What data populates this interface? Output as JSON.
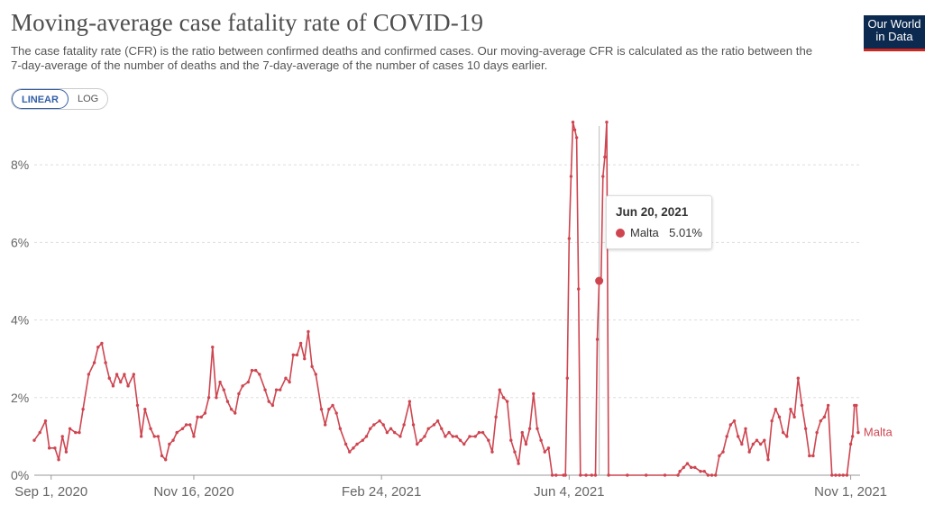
{
  "header": {
    "title": "Moving-average case fatality rate of COVID-19",
    "subtitle": "The case fatality rate (CFR) is the ratio between confirmed deaths and confirmed cases. Our moving-average CFR is calculated as the ratio between the 7-day-average of the number of deaths and the 7-day-average of the number of cases 10 days earlier."
  },
  "logo": {
    "line1": "Our World",
    "line2": "in Data"
  },
  "scale_toggle": {
    "linear": "LINEAR",
    "log": "LOG",
    "selected": "LINEAR"
  },
  "tooltip": {
    "date": "Jun 20, 2021",
    "series": "Malta",
    "value": "5.01%"
  },
  "colors": {
    "series": "#ce4550",
    "grid": "#dddddd",
    "axis": "#999999"
  },
  "chart_data": {
    "type": "line",
    "x_ticks": [
      "Sep 1, 2020",
      "Nov 16, 2020",
      "Feb 24, 2021",
      "Jun 4, 2021",
      "Nov 1, 2021"
    ],
    "y_ticks": [
      "0%",
      "2%",
      "4%",
      "6%",
      "8%"
    ],
    "ylim": [
      0,
      9
    ],
    "xlim": [
      "2020-08-23",
      "2021-11-06"
    ],
    "grid": true,
    "series": [
      {
        "name": "Malta",
        "color": "#ce4550",
        "points": [
          [
            "2020-08-23",
            0.9
          ],
          [
            "2020-08-26",
            1.1
          ],
          [
            "2020-08-29",
            1.4
          ],
          [
            "2020-08-31",
            0.7
          ],
          [
            "2020-09-03",
            0.7
          ],
          [
            "2020-09-05",
            0.4
          ],
          [
            "2020-09-07",
            1.0
          ],
          [
            "2020-09-09",
            0.6
          ],
          [
            "2020-09-11",
            1.2
          ],
          [
            "2020-09-14",
            1.1
          ],
          [
            "2020-09-16",
            1.1
          ],
          [
            "2020-09-18",
            1.7
          ],
          [
            "2020-09-21",
            2.6
          ],
          [
            "2020-09-24",
            2.9
          ],
          [
            "2020-09-26",
            3.3
          ],
          [
            "2020-09-28",
            3.4
          ],
          [
            "2020-09-30",
            2.9
          ],
          [
            "2020-10-02",
            2.5
          ],
          [
            "2020-10-04",
            2.3
          ],
          [
            "2020-10-06",
            2.6
          ],
          [
            "2020-10-08",
            2.4
          ],
          [
            "2020-10-10",
            2.6
          ],
          [
            "2020-10-12",
            2.3
          ],
          [
            "2020-10-15",
            2.6
          ],
          [
            "2020-10-17",
            1.8
          ],
          [
            "2020-10-19",
            1.0
          ],
          [
            "2020-10-21",
            1.7
          ],
          [
            "2020-10-24",
            1.2
          ],
          [
            "2020-10-26",
            1.0
          ],
          [
            "2020-10-28",
            1.0
          ],
          [
            "2020-10-30",
            0.5
          ],
          [
            "2020-11-01",
            0.4
          ],
          [
            "2020-11-03",
            0.8
          ],
          [
            "2020-11-05",
            0.9
          ],
          [
            "2020-11-07",
            1.1
          ],
          [
            "2020-11-10",
            1.2
          ],
          [
            "2020-11-12",
            1.3
          ],
          [
            "2020-11-14",
            1.3
          ],
          [
            "2020-11-16",
            1.0
          ],
          [
            "2020-11-18",
            1.5
          ],
          [
            "2020-11-20",
            1.5
          ],
          [
            "2020-11-22",
            1.6
          ],
          [
            "2020-11-24",
            2.0
          ],
          [
            "2020-11-26",
            3.3
          ],
          [
            "2020-11-28",
            2.0
          ],
          [
            "2020-11-30",
            2.4
          ],
          [
            "2020-12-02",
            2.2
          ],
          [
            "2020-12-04",
            1.9
          ],
          [
            "2020-12-06",
            1.7
          ],
          [
            "2020-12-08",
            1.6
          ],
          [
            "2020-12-10",
            2.1
          ],
          [
            "2020-12-12",
            2.3
          ],
          [
            "2020-12-15",
            2.4
          ],
          [
            "2020-12-17",
            2.7
          ],
          [
            "2020-12-19",
            2.7
          ],
          [
            "2020-12-21",
            2.6
          ],
          [
            "2020-12-24",
            2.2
          ],
          [
            "2020-12-26",
            1.9
          ],
          [
            "2020-12-28",
            1.8
          ],
          [
            "2020-12-30",
            2.2
          ],
          [
            "2021-01-01",
            2.2
          ],
          [
            "2021-01-04",
            2.5
          ],
          [
            "2021-01-06",
            2.4
          ],
          [
            "2021-01-08",
            3.1
          ],
          [
            "2021-01-10",
            3.1
          ],
          [
            "2021-01-12",
            3.4
          ],
          [
            "2021-01-14",
            3.0
          ],
          [
            "2021-01-16",
            3.7
          ],
          [
            "2021-01-18",
            2.8
          ],
          [
            "2021-01-20",
            2.6
          ],
          [
            "2021-01-23",
            1.7
          ],
          [
            "2021-01-25",
            1.3
          ],
          [
            "2021-01-27",
            1.7
          ],
          [
            "2021-01-29",
            1.8
          ],
          [
            "2021-01-31",
            1.6
          ],
          [
            "2021-02-02",
            1.2
          ],
          [
            "2021-02-05",
            0.8
          ],
          [
            "2021-02-07",
            0.6
          ],
          [
            "2021-02-09",
            0.7
          ],
          [
            "2021-02-11",
            0.8
          ],
          [
            "2021-02-14",
            0.9
          ],
          [
            "2021-02-16",
            1.0
          ],
          [
            "2021-02-18",
            1.2
          ],
          [
            "2021-02-20",
            1.3
          ],
          [
            "2021-02-23",
            1.4
          ],
          [
            "2021-02-25",
            1.3
          ],
          [
            "2021-02-27",
            1.1
          ],
          [
            "2021-03-01",
            1.2
          ],
          [
            "2021-03-03",
            1.1
          ],
          [
            "2021-03-06",
            1.0
          ],
          [
            "2021-03-08",
            1.3
          ],
          [
            "2021-03-11",
            1.9
          ],
          [
            "2021-03-13",
            1.3
          ],
          [
            "2021-03-15",
            0.8
          ],
          [
            "2021-03-17",
            0.9
          ],
          [
            "2021-03-19",
            1.0
          ],
          [
            "2021-03-21",
            1.2
          ],
          [
            "2021-03-24",
            1.3
          ],
          [
            "2021-03-26",
            1.4
          ],
          [
            "2021-03-28",
            1.2
          ],
          [
            "2021-03-30",
            1.0
          ],
          [
            "2021-04-01",
            1.1
          ],
          [
            "2021-04-03",
            1.0
          ],
          [
            "2021-04-05",
            1.0
          ],
          [
            "2021-04-07",
            0.9
          ],
          [
            "2021-04-09",
            0.8
          ],
          [
            "2021-04-12",
            1.0
          ],
          [
            "2021-04-15",
            1.0
          ],
          [
            "2021-04-17",
            1.1
          ],
          [
            "2021-04-19",
            1.1
          ],
          [
            "2021-04-22",
            0.9
          ],
          [
            "2021-04-24",
            0.6
          ],
          [
            "2021-04-26",
            1.5
          ],
          [
            "2021-04-28",
            2.2
          ],
          [
            "2021-04-30",
            2.0
          ],
          [
            "2021-05-02",
            1.9
          ],
          [
            "2021-05-04",
            0.9
          ],
          [
            "2021-05-06",
            0.6
          ],
          [
            "2021-05-08",
            0.3
          ],
          [
            "2021-05-10",
            1.1
          ],
          [
            "2021-05-12",
            0.8
          ],
          [
            "2021-05-14",
            1.2
          ],
          [
            "2021-05-16",
            2.1
          ],
          [
            "2021-05-18",
            1.2
          ],
          [
            "2021-05-20",
            0.9
          ],
          [
            "2021-05-22",
            0.6
          ],
          [
            "2021-05-24",
            0.7
          ],
          [
            "2021-05-26",
            0.0
          ],
          [
            "2021-05-28",
            0.0
          ],
          [
            "2021-06-01",
            0.0
          ],
          [
            "2021-06-02",
            0.0
          ],
          [
            "2021-06-03",
            2.5
          ],
          [
            "2021-06-04",
            6.1
          ],
          [
            "2021-06-05",
            7.7
          ],
          [
            "2021-06-06",
            9.1
          ],
          [
            "2021-06-07",
            8.9
          ],
          [
            "2021-06-08",
            8.7
          ],
          [
            "2021-06-09",
            4.8
          ],
          [
            "2021-06-10",
            0.0
          ],
          [
            "2021-06-13",
            0.0
          ],
          [
            "2021-06-16",
            0.0
          ],
          [
            "2021-06-18",
            0.0
          ],
          [
            "2021-06-19",
            3.5
          ],
          [
            "2021-06-20",
            5.01
          ],
          [
            "2021-06-21",
            5.0
          ],
          [
            "2021-06-22",
            7.7
          ],
          [
            "2021-06-23",
            8.2
          ],
          [
            "2021-06-24",
            9.1
          ],
          [
            "2021-06-25",
            0.0
          ],
          [
            "2021-07-05",
            0.0
          ],
          [
            "2021-07-15",
            0.0
          ],
          [
            "2021-07-25",
            0.0
          ],
          [
            "2021-08-01",
            0.0
          ],
          [
            "2021-08-02",
            0.1
          ],
          [
            "2021-08-04",
            0.2
          ],
          [
            "2021-08-06",
            0.3
          ],
          [
            "2021-08-08",
            0.2
          ],
          [
            "2021-08-10",
            0.2
          ],
          [
            "2021-08-13",
            0.1
          ],
          [
            "2021-08-15",
            0.1
          ],
          [
            "2021-08-17",
            0.0
          ],
          [
            "2021-08-19",
            0.0
          ],
          [
            "2021-08-21",
            0.0
          ],
          [
            "2021-08-23",
            0.5
          ],
          [
            "2021-08-25",
            0.6
          ],
          [
            "2021-08-27",
            1.0
          ],
          [
            "2021-08-29",
            1.3
          ],
          [
            "2021-08-31",
            1.4
          ],
          [
            "2021-09-02",
            1.0
          ],
          [
            "2021-09-04",
            0.8
          ],
          [
            "2021-09-06",
            1.2
          ],
          [
            "2021-09-08",
            0.6
          ],
          [
            "2021-09-10",
            0.8
          ],
          [
            "2021-09-12",
            0.9
          ],
          [
            "2021-09-14",
            0.8
          ],
          [
            "2021-09-16",
            0.9
          ],
          [
            "2021-09-18",
            0.4
          ],
          [
            "2021-09-20",
            1.4
          ],
          [
            "2021-09-22",
            1.7
          ],
          [
            "2021-09-24",
            1.5
          ],
          [
            "2021-09-26",
            1.1
          ],
          [
            "2021-09-28",
            1.0
          ],
          [
            "2021-09-30",
            1.7
          ],
          [
            "2021-10-02",
            1.5
          ],
          [
            "2021-10-04",
            2.5
          ],
          [
            "2021-10-06",
            1.8
          ],
          [
            "2021-10-08",
            1.2
          ],
          [
            "2021-10-10",
            0.5
          ],
          [
            "2021-10-12",
            0.5
          ],
          [
            "2021-10-14",
            1.1
          ],
          [
            "2021-10-16",
            1.4
          ],
          [
            "2021-10-18",
            1.5
          ],
          [
            "2021-10-20",
            1.8
          ],
          [
            "2021-10-22",
            0.0
          ],
          [
            "2021-10-24",
            0.0
          ],
          [
            "2021-10-26",
            0.0
          ],
          [
            "2021-10-28",
            0.0
          ],
          [
            "2021-10-30",
            0.0
          ],
          [
            "2021-11-01",
            0.8
          ],
          [
            "2021-11-02",
            1.0
          ],
          [
            "2021-11-03",
            1.8
          ],
          [
            "2021-11-04",
            1.8
          ],
          [
            "2021-11-05",
            1.1
          ]
        ]
      }
    ],
    "hover": {
      "date": "2021-06-20",
      "value": 5.01
    }
  }
}
